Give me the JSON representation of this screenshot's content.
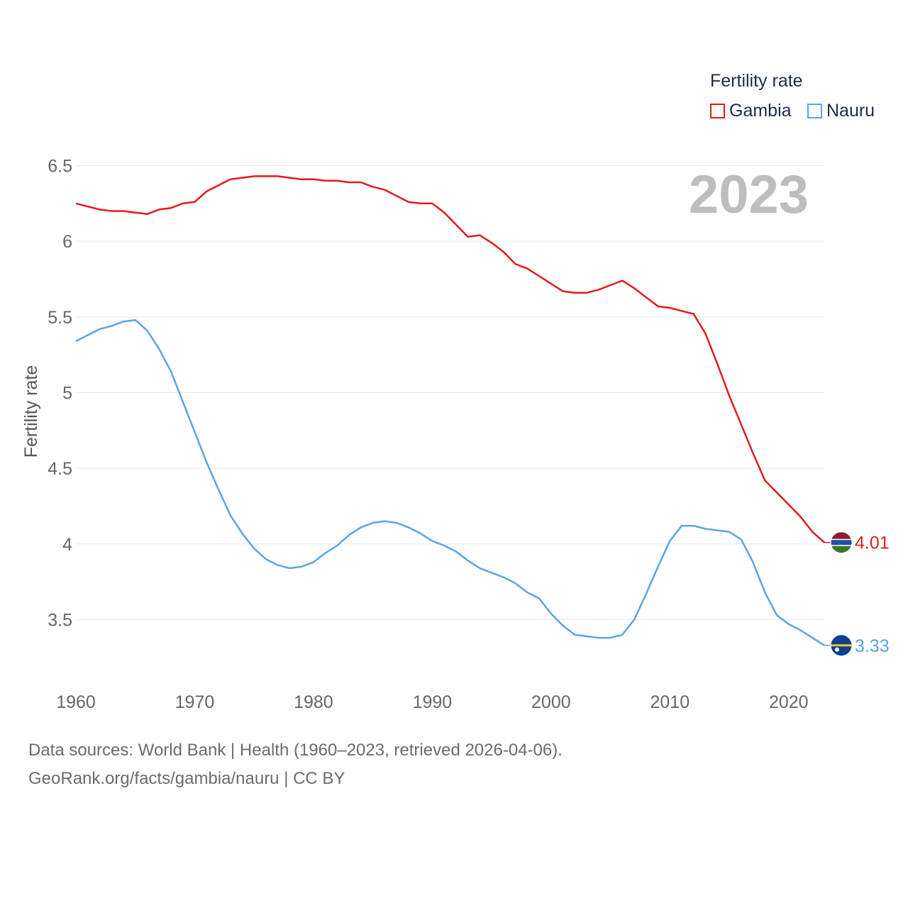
{
  "legend": {
    "title": "Fertility rate",
    "items": [
      {
        "name": "Gambia",
        "color": "#e31a1c"
      },
      {
        "name": "Nauru",
        "color": "#5aa4e6"
      }
    ]
  },
  "year_label": "2023",
  "footer": {
    "line1": "Data sources: World Bank | Health (1960–2023, retrieved 2026-04-06).",
    "line2": "GeoRank.org/facts/gambia/nauru | CC BY"
  },
  "chart_data": {
    "type": "line",
    "title": "",
    "xlabel": "",
    "ylabel": "Fertility rate",
    "xlim": [
      1960,
      2023
    ],
    "ylim": [
      3.25,
      6.55
    ],
    "xticks": [
      1960,
      1970,
      1980,
      1990,
      2000,
      2010,
      2020
    ],
    "yticks": [
      3.5,
      4,
      4.5,
      5,
      5.5,
      6,
      6.5
    ],
    "ytick_labels": [
      "3.5",
      "4",
      "4.5",
      "5",
      "5.5",
      "6",
      "6.5"
    ],
    "x": [
      1960,
      1961,
      1962,
      1963,
      1964,
      1965,
      1966,
      1967,
      1968,
      1969,
      1970,
      1971,
      1972,
      1973,
      1974,
      1975,
      1976,
      1977,
      1978,
      1979,
      1980,
      1981,
      1982,
      1983,
      1984,
      1985,
      1986,
      1987,
      1988,
      1989,
      1990,
      1991,
      1992,
      1993,
      1994,
      1995,
      1996,
      1997,
      1998,
      1999,
      2000,
      2001,
      2002,
      2003,
      2004,
      2005,
      2006,
      2007,
      2008,
      2009,
      2010,
      2011,
      2012,
      2013,
      2014,
      2015,
      2016,
      2017,
      2018,
      2019,
      2020,
      2021,
      2022,
      2023
    ],
    "series": [
      {
        "name": "Gambia",
        "color": "#e31a1c",
        "end_label": "4.01",
        "values": [
          6.25,
          6.23,
          6.21,
          6.2,
          6.2,
          6.19,
          6.18,
          6.21,
          6.22,
          6.25,
          6.26,
          6.33,
          6.37,
          6.41,
          6.42,
          6.43,
          6.43,
          6.43,
          6.42,
          6.41,
          6.41,
          6.4,
          6.4,
          6.39,
          6.39,
          6.36,
          6.34,
          6.3,
          6.26,
          6.25,
          6.25,
          6.19,
          6.11,
          6.03,
          6.04,
          5.99,
          5.93,
          5.85,
          5.82,
          5.77,
          5.72,
          5.67,
          5.66,
          5.66,
          5.68,
          5.71,
          5.74,
          5.69,
          5.63,
          5.57,
          5.56,
          5.54,
          5.52,
          5.39,
          5.19,
          4.98,
          4.79,
          4.6,
          4.42,
          4.34,
          4.26,
          4.18,
          4.08,
          4.01
        ]
      },
      {
        "name": "Nauru",
        "color": "#5aa4e6",
        "end_label": "3.33",
        "values": [
          5.34,
          5.38,
          5.42,
          5.44,
          5.47,
          5.48,
          5.41,
          5.29,
          5.14,
          4.94,
          4.74,
          4.54,
          4.36,
          4.19,
          4.07,
          3.97,
          3.9,
          3.86,
          3.84,
          3.85,
          3.88,
          3.94,
          3.99,
          4.06,
          4.11,
          4.14,
          4.15,
          4.14,
          4.11,
          4.07,
          4.02,
          3.99,
          3.95,
          3.89,
          3.84,
          3.81,
          3.78,
          3.74,
          3.68,
          3.64,
          3.54,
          3.46,
          3.4,
          3.39,
          3.38,
          3.38,
          3.4,
          3.5,
          3.67,
          3.85,
          4.02,
          4.12,
          4.12,
          4.1,
          4.09,
          4.08,
          4.03,
          3.88,
          3.68,
          3.53,
          3.47,
          3.43,
          3.38,
          3.33
        ]
      }
    ]
  }
}
